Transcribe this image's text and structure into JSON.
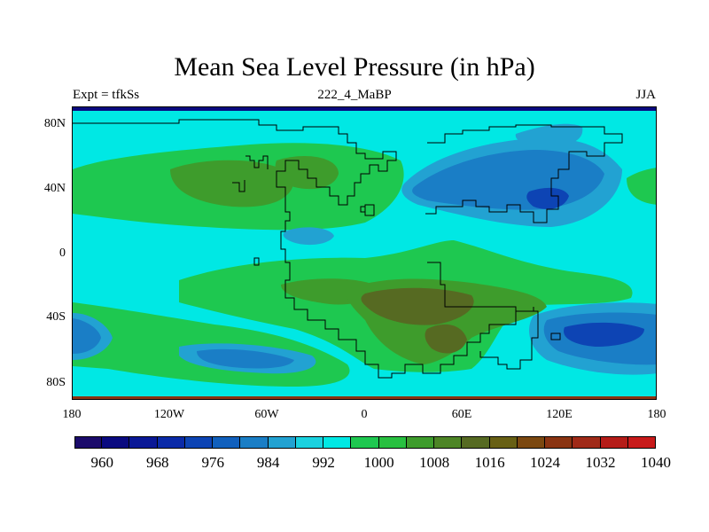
{
  "title": "Mean Sea Level Pressure (in hPa)",
  "left_string": "Expt = tfkSs",
  "center_string": "222_4_MaBP",
  "right_string": "JJA",
  "y_ticks": [
    "80N",
    "40N",
    "0",
    "40S",
    "80S"
  ],
  "x_ticks": [
    "180",
    "120W",
    "60W",
    "0",
    "60E",
    "120E",
    "180"
  ],
  "colorbar": {
    "labels": [
      "960",
      "968",
      "976",
      "984",
      "992",
      "1000",
      "1008",
      "1016",
      "1024",
      "1032",
      "1040"
    ],
    "colors": [
      "#1b0b6b",
      "#0a0a80",
      "#0a1896",
      "#0a2aa8",
      "#0d44b4",
      "#1160bd",
      "#1a7ec6",
      "#22a2d2",
      "#1ad2e0",
      "#00e8e4",
      "#1ec850",
      "#28c040",
      "#3e9c2c",
      "#4d8526",
      "#566a22",
      "#686014",
      "#7b4810",
      "#8a3412",
      "#a02a18",
      "#b51c18",
      "#c81a1a"
    ]
  },
  "colors": {
    "ocean": "#00e8e4",
    "deep_blue": "#0d44b4",
    "mid_blue": "#1a7ec6",
    "light_blue": "#22a2d2",
    "green": "#1ec850",
    "olive": "#3e9c2c",
    "brown": "#566a22",
    "navy": "#0a0a80",
    "red_border": "#8a3412"
  }
}
